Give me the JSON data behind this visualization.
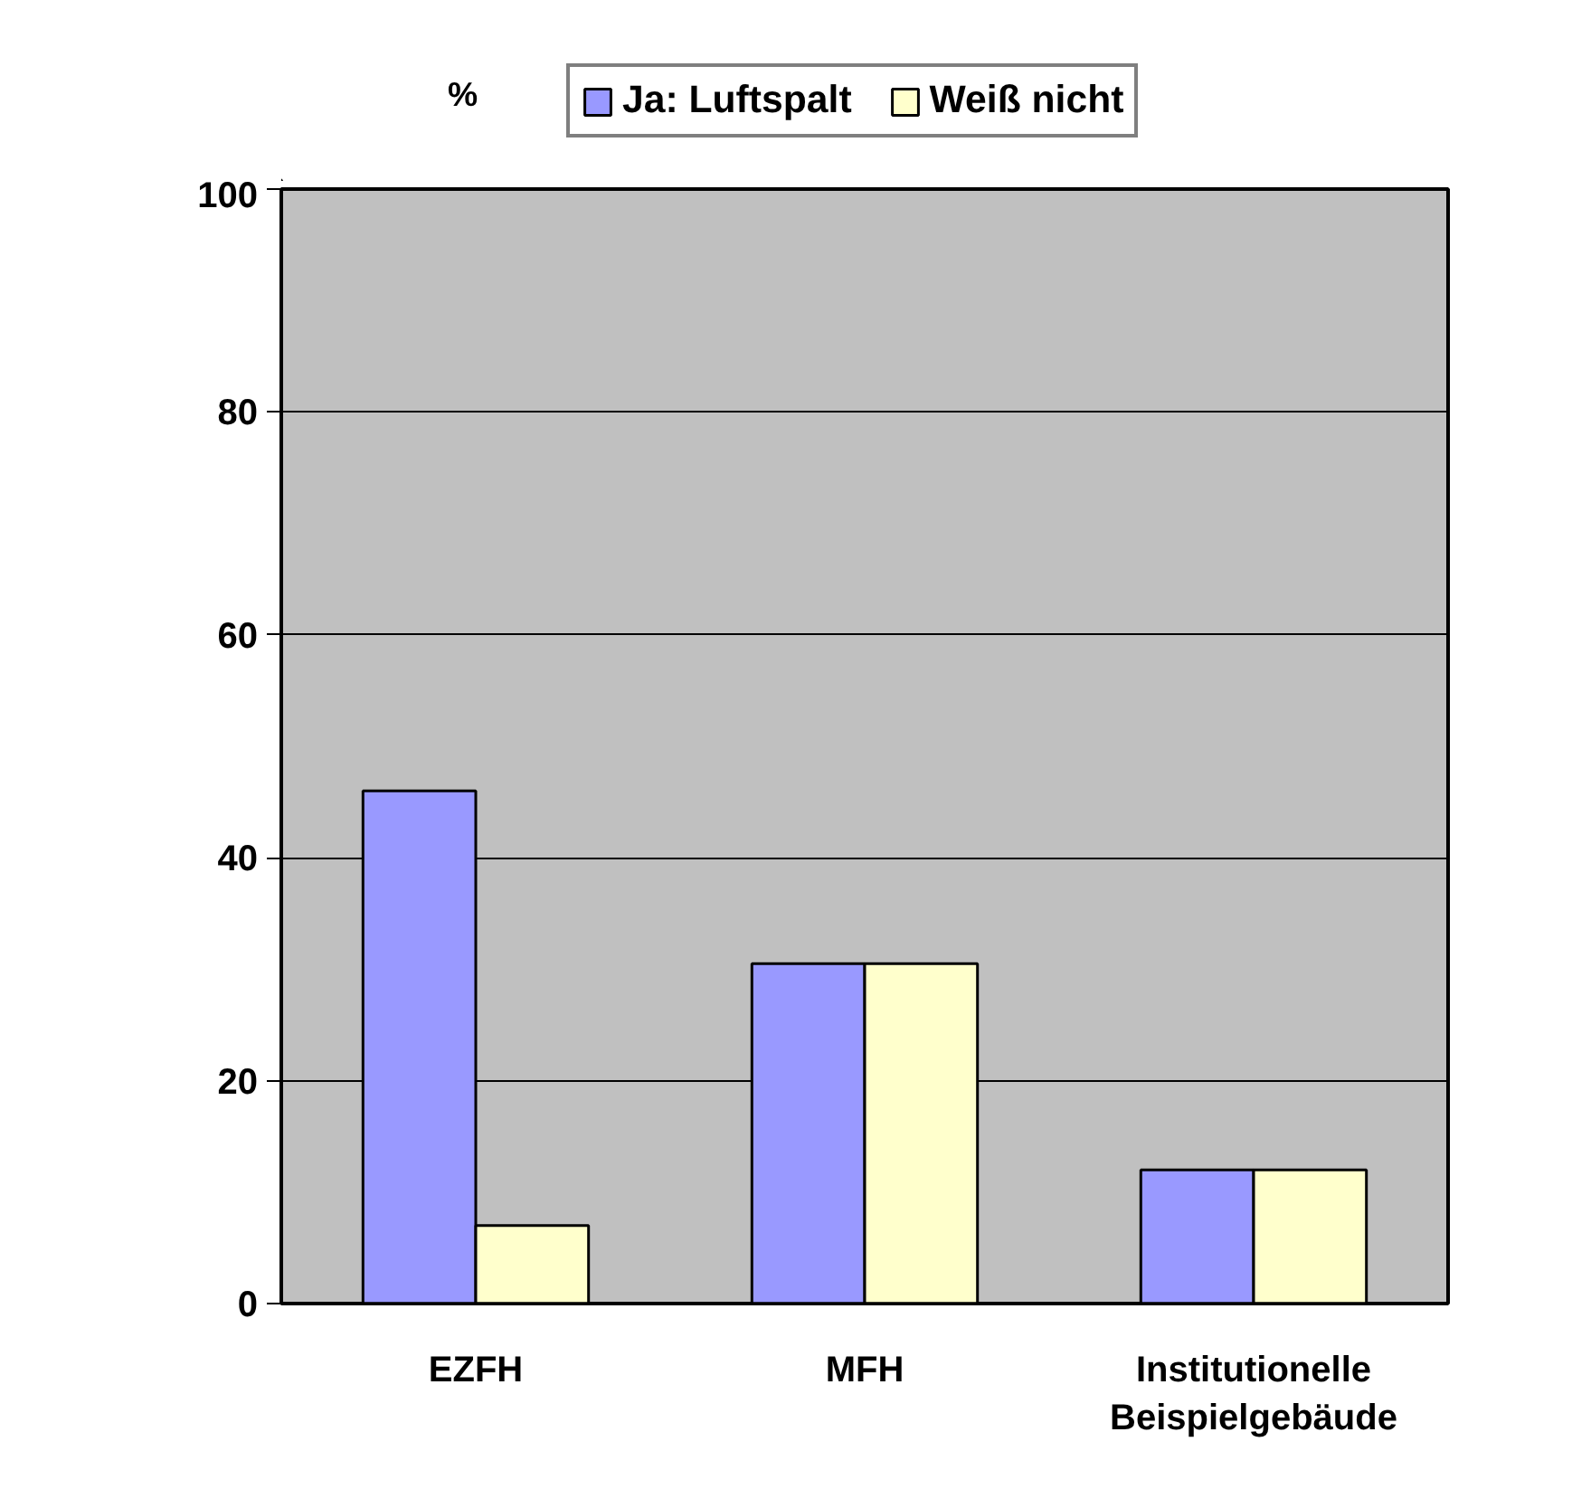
{
  "chart_data": {
    "type": "bar",
    "annotations": [
      "%"
    ],
    "categories": [
      "EZFH",
      "MFH",
      "Institutionelle Beispielgebäude"
    ],
    "series": [
      {
        "name": "Ja: Luftspalt",
        "color": "#9999ff",
        "values": [
          46,
          30.5,
          12
        ]
      },
      {
        "name": "Weiß nicht",
        "color": "#ffffcc",
        "values": [
          7,
          30.5,
          12
        ]
      }
    ],
    "ylim": [
      0,
      100
    ],
    "yticks": [
      0,
      20,
      40,
      60,
      80,
      100
    ],
    "grid": "y",
    "legend": "top"
  }
}
